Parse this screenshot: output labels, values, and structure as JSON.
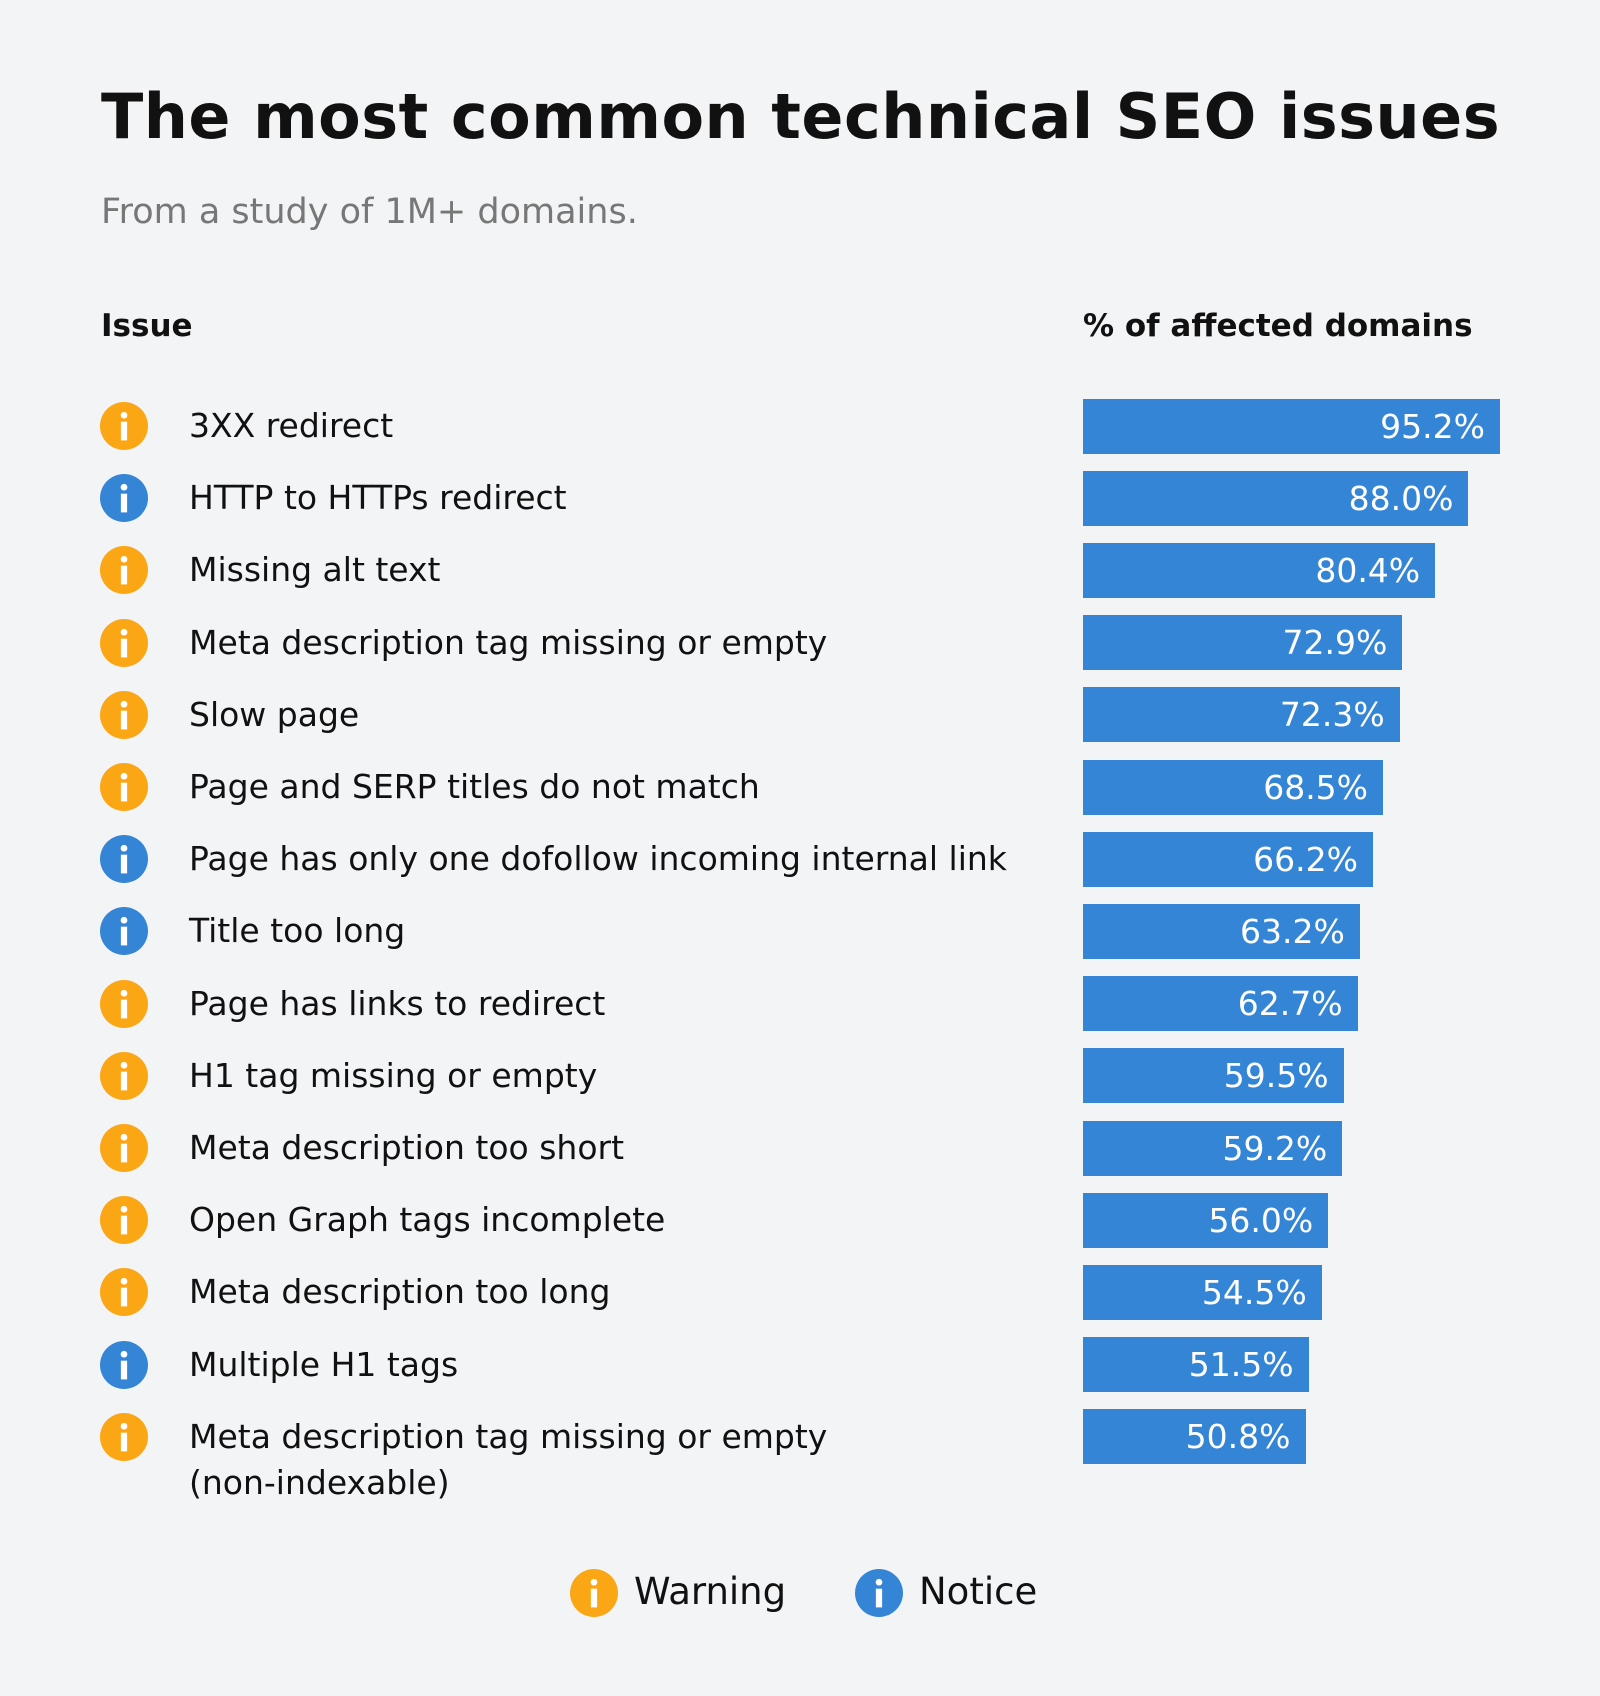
{
  "chart_data": {
    "type": "bar",
    "title": "The most common technical SEO issues",
    "subtitle": "From a study of 1M+ domains.",
    "category_header": "Issue",
    "value_header": "% of affected domains",
    "color": "#3585d6",
    "legend": [
      {
        "name": "Warning",
        "color": "#fba614"
      },
      {
        "name": "Notice",
        "color": "#3585d6"
      }
    ],
    "categories": [
      "3XX redirect",
      "HTTP to HTTPs redirect",
      "Missing alt text",
      "Meta description tag missing or empty",
      "Slow page",
      "Page and SERP titles do not match",
      "Page has only one dofollow incoming internal link",
      "Title too long",
      "Page has links to redirect",
      "H1 tag missing or empty",
      "Meta description too short",
      "Open Graph tags incomplete",
      "Meta description too long",
      "Multiple H1 tags",
      "Meta description tag missing or empty\n(non-indexable)"
    ],
    "category_types": [
      0,
      1,
      0,
      0,
      0,
      0,
      1,
      1,
      0,
      0,
      0,
      0,
      0,
      1,
      0
    ],
    "values": [
      95.2,
      88.0,
      80.4,
      72.9,
      72.3,
      68.5,
      66.2,
      63.2,
      62.7,
      59.5,
      59.2,
      56.0,
      54.5,
      51.5,
      50.8
    ],
    "value_labels": [
      "95.2%",
      "88.0%",
      "80.4%",
      "72.9%",
      "72.3%",
      "68.5%",
      "66.2%",
      "63.2%",
      "62.7%",
      "59.5%",
      "59.2%",
      "56.0%",
      "54.5%",
      "51.5%",
      "50.8%"
    ]
  }
}
